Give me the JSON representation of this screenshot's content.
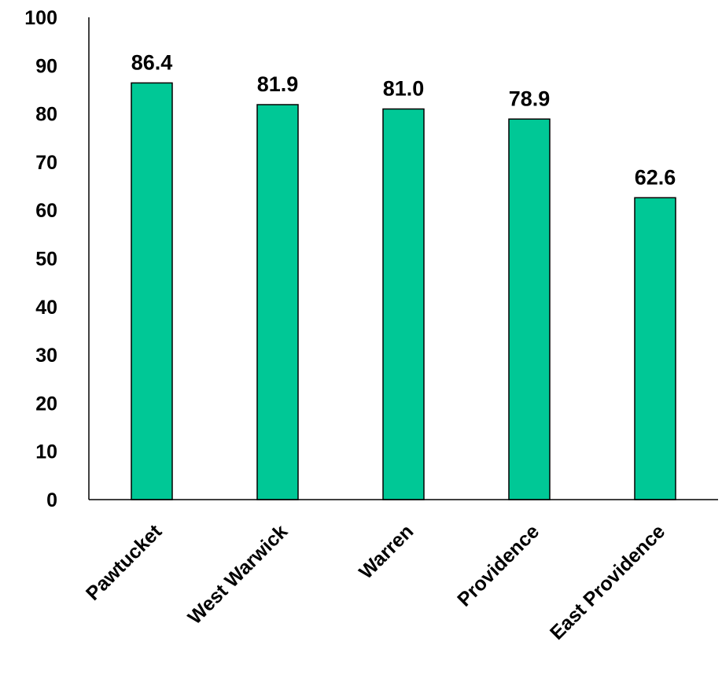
{
  "chart_data": {
    "type": "bar",
    "categories": [
      "Pawtucket",
      "West Warwick",
      "Warren",
      "Providence",
      "East Providence"
    ],
    "values": [
      86.4,
      81.9,
      81.0,
      78.9,
      62.6
    ],
    "value_labels": [
      "86.4",
      "81.9",
      "81.0",
      "78.9",
      "62.6"
    ],
    "title": "",
    "xlabel": "",
    "ylabel": "",
    "ylim": [
      0,
      100
    ],
    "yticks": [
      0,
      10,
      20,
      30,
      40,
      50,
      60,
      70,
      80,
      90,
      100
    ],
    "grid": false,
    "legend": "none",
    "bar_color": "#00C896",
    "bar_edge_color": "#000000"
  }
}
